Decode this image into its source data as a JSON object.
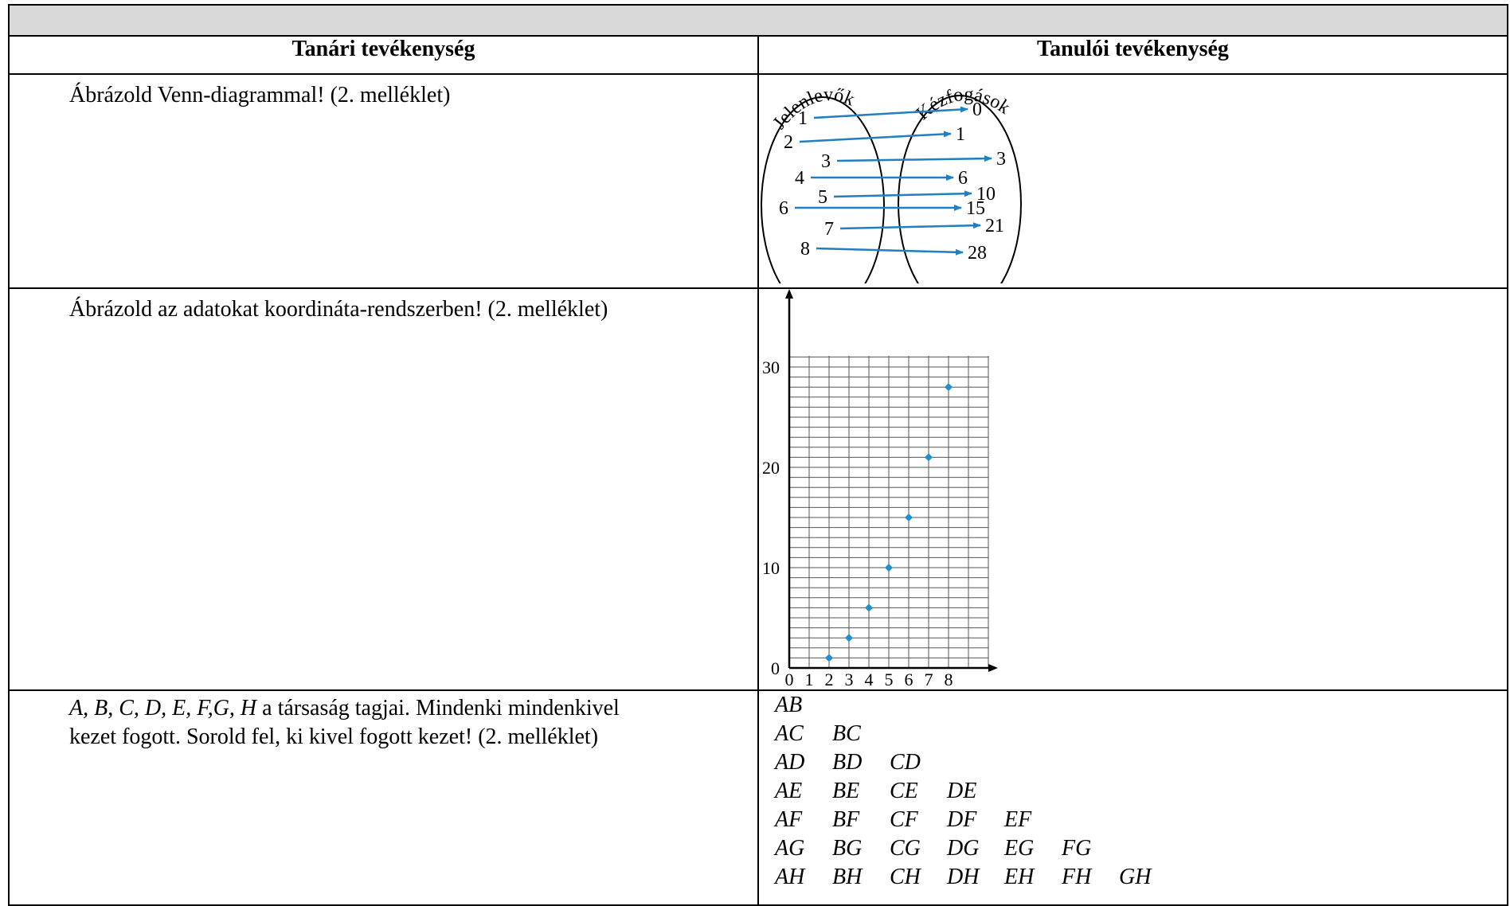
{
  "table": {
    "header_left": "Tanári tevékenység",
    "header_right": "Tanulói tevékenység"
  },
  "rows": {
    "venn_task": "Ábrázold Venn-diagrammal! (2. melléklet)",
    "plot_task": "Ábrázold az adatokat koordináta-rendszerben! (2. melléklet)",
    "pairs_task_italic": "A, B, C, D, E, F,G, H",
    "pairs_task_rest_1": " a társaság tagjai. Mindenki mindenkivel",
    "pairs_task_line2": "kezet fogott. Sorold fel, ki kivel fogott kezet! (2. melléklet)"
  },
  "venn": {
    "left_label": "Jelenlevők",
    "right_label": "Kézfogások",
    "mapping": [
      {
        "from": "1",
        "to": "0"
      },
      {
        "from": "2",
        "to": "1"
      },
      {
        "from": "3",
        "to": "3"
      },
      {
        "from": "4",
        "to": "6"
      },
      {
        "from": "5",
        "to": "10"
      },
      {
        "from": "6",
        "to": "15"
      },
      {
        "from": "7",
        "to": "21"
      },
      {
        "from": "8",
        "to": "28"
      }
    ],
    "arrow_color": "#1f7fc0"
  },
  "chart_data": {
    "type": "scatter",
    "x": [
      2,
      3,
      4,
      5,
      6,
      7,
      8
    ],
    "y": [
      1,
      3,
      6,
      10,
      15,
      21,
      28
    ],
    "xlim": [
      0,
      10
    ],
    "ylim": [
      0,
      30
    ],
    "x_tick_labels": [
      "0",
      "1",
      "2",
      "3",
      "4",
      "5",
      "6",
      "7",
      "8"
    ],
    "y_tick_labels": [
      "0",
      "10",
      "20",
      "30"
    ],
    "grid": true,
    "marker_color": "#1e90d0"
  },
  "pairs": [
    [
      "AB"
    ],
    [
      "AC",
      "BC"
    ],
    [
      "AD",
      "BD",
      "CD"
    ],
    [
      "AE",
      "BE",
      "CE",
      "DE"
    ],
    [
      "AF",
      "BF",
      "CF",
      "DF",
      "EF"
    ],
    [
      "AG",
      "BG",
      "CG",
      "DG",
      "EG",
      "FG"
    ],
    [
      "AH",
      "BH",
      "CH",
      "DH",
      "EH",
      "FH",
      "GH"
    ]
  ]
}
